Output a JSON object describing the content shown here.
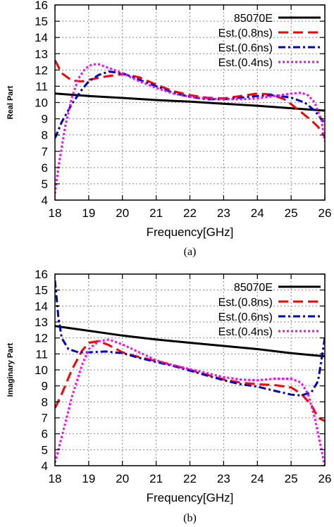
{
  "chart_data": [
    {
      "type": "line",
      "caption": "(a)",
      "xlabel": "Frequency[GHz]",
      "ylabel": "Real Part",
      "xlim": [
        18,
        26
      ],
      "ylim": [
        4,
        16
      ],
      "xticks": [
        18,
        19,
        20,
        21,
        22,
        23,
        24,
        25,
        26
      ],
      "yticks": [
        4,
        5,
        6,
        7,
        8,
        9,
        10,
        11,
        12,
        13,
        14,
        15,
        16
      ],
      "grid": true,
      "legend_position": "top-right",
      "series": [
        {
          "name": "85070E",
          "color": "#000000",
          "style": "solid",
          "x": [
            18,
            19,
            20,
            21,
            22,
            23,
            24,
            25,
            26
          ],
          "y": [
            10.55,
            10.4,
            10.28,
            10.15,
            10.05,
            9.92,
            9.8,
            9.65,
            9.5
          ]
        },
        {
          "name": "Est.(0.8ns)",
          "color": "#ff0000",
          "style": "dashed",
          "x": [
            18,
            18.2,
            18.5,
            18.8,
            19,
            19.5,
            20,
            20.5,
            21,
            21.5,
            22,
            22.5,
            23,
            23.5,
            24,
            24.4,
            24.8,
            25,
            25.3,
            25.6,
            25.8,
            26
          ],
          "y": [
            12.6,
            11.8,
            11.35,
            11.3,
            11.4,
            11.6,
            11.75,
            11.55,
            11.1,
            10.7,
            10.45,
            10.3,
            10.25,
            10.4,
            10.55,
            10.5,
            10.2,
            9.9,
            9.4,
            8.9,
            8.5,
            7.9
          ]
        },
        {
          "name": "Est.(0.6ns)",
          "color": "#0000cc",
          "style": "dashdot",
          "x": [
            18,
            18.2,
            18.5,
            18.8,
            19,
            19.3,
            19.6,
            20,
            20.5,
            21,
            21.5,
            22,
            22.5,
            23,
            23.5,
            24,
            24.5,
            25,
            25.4,
            25.7,
            26
          ],
          "y": [
            7.8,
            8.8,
            9.9,
            10.8,
            11.3,
            11.7,
            11.9,
            11.8,
            11.4,
            11.0,
            10.6,
            10.35,
            10.2,
            10.2,
            10.3,
            10.4,
            10.45,
            10.3,
            10.0,
            9.5,
            8.7
          ]
        },
        {
          "name": "Est.(0.4ns)",
          "color": "#ff00ff",
          "style": "dotted",
          "x": [
            18,
            18.1,
            18.3,
            18.5,
            18.7,
            18.9,
            19.1,
            19.3,
            19.5,
            20,
            20.5,
            21,
            21.5,
            22,
            22.5,
            23,
            23.5,
            24,
            24.5,
            25,
            25.3,
            25.5,
            25.7,
            25.9,
            26
          ],
          "y": [
            4.4,
            6.0,
            8.5,
            10.3,
            11.5,
            12.1,
            12.35,
            12.35,
            12.2,
            11.8,
            11.3,
            10.9,
            10.55,
            10.35,
            10.25,
            10.2,
            10.2,
            10.25,
            10.4,
            10.55,
            10.6,
            10.45,
            10.0,
            8.9,
            7.6
          ]
        }
      ]
    },
    {
      "type": "line",
      "caption": "(b)",
      "xlabel": "Frequency[GHz]",
      "ylabel": "Imaginary Part",
      "xlim": [
        18,
        26
      ],
      "ylim": [
        4,
        16
      ],
      "xticks": [
        18,
        19,
        20,
        21,
        22,
        23,
        24,
        25,
        26
      ],
      "yticks": [
        4,
        5,
        6,
        7,
        8,
        9,
        10,
        11,
        12,
        13,
        14,
        15,
        16
      ],
      "grid": true,
      "legend_position": "top-right",
      "series": [
        {
          "name": "85070E",
          "color": "#000000",
          "style": "solid",
          "x": [
            18,
            19,
            20,
            21,
            22,
            23,
            24,
            25,
            26
          ],
          "y": [
            12.75,
            12.45,
            12.15,
            11.9,
            11.7,
            11.5,
            11.3,
            11.05,
            10.85
          ]
        },
        {
          "name": "Est.(0.8ns)",
          "color": "#ff0000",
          "style": "dashed",
          "x": [
            18,
            18.2,
            18.5,
            18.8,
            19,
            19.3,
            19.6,
            20,
            20.5,
            21,
            21.5,
            22,
            22.5,
            23,
            23.5,
            24,
            24.5,
            25,
            25.3,
            25.6,
            25.8,
            26
          ],
          "y": [
            7.6,
            8.5,
            10.0,
            11.2,
            11.7,
            11.8,
            11.55,
            11.1,
            10.8,
            10.55,
            10.3,
            10.0,
            9.7,
            9.4,
            9.2,
            9.1,
            9.05,
            8.9,
            8.5,
            7.8,
            7.0,
            6.8
          ]
        },
        {
          "name": "Est.(0.6ns)",
          "color": "#0000cc",
          "style": "dashdot",
          "x": [
            18,
            18.05,
            18.1,
            18.2,
            18.4,
            18.7,
            19,
            19.5,
            20,
            20.5,
            21,
            21.5,
            22,
            22.5,
            23,
            23.5,
            24,
            24.5,
            25,
            25.3,
            25.6,
            25.8,
            26
          ],
          "y": [
            15.6,
            14.5,
            13.3,
            12.0,
            11.3,
            11.1,
            11.1,
            11.15,
            11.05,
            10.75,
            10.5,
            10.25,
            9.95,
            9.65,
            9.35,
            9.1,
            8.95,
            8.7,
            8.45,
            8.4,
            8.6,
            9.3,
            12.0
          ]
        },
        {
          "name": "Est.(0.4ns)",
          "color": "#ff00ff",
          "style": "dotted",
          "x": [
            18,
            18.2,
            18.5,
            18.8,
            19,
            19.3,
            19.6,
            20,
            20.5,
            21,
            21.5,
            22,
            22.5,
            23,
            23.5,
            24,
            24.5,
            25,
            25.3,
            25.5,
            25.7,
            25.9,
            26
          ],
          "y": [
            4.2,
            5.8,
            8.3,
            10.3,
            11.3,
            11.8,
            11.9,
            11.6,
            11.1,
            10.6,
            10.3,
            10.05,
            9.8,
            9.55,
            9.4,
            9.35,
            9.45,
            9.45,
            9.2,
            8.5,
            7.0,
            5.0,
            3.9
          ]
        }
      ]
    }
  ]
}
